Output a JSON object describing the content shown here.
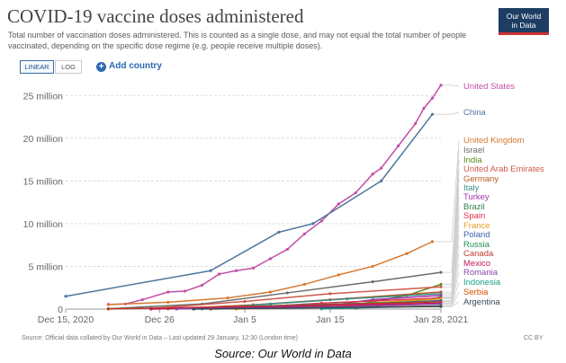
{
  "header": {
    "title": "COVID-19 vaccine doses administered",
    "subtitle": "Total number of vaccination doses administered. This is counted as a single dose, and may not equal the total number of people vaccinated, depending on the specific dose regime (e.g. people receive multiple doses).",
    "logo_line1": "Our World",
    "logo_line2": "in Data"
  },
  "controls": {
    "linear_label": "LINEAR",
    "log_label": "LOG",
    "add_country_label": "Add country",
    "add_icon": "plus-icon",
    "selected_scale": "LINEAR"
  },
  "footer": {
    "source": "Source: Official data collated by Our World in Data – Last updated 29 January, 12:30 (London time)",
    "license": "CC BY"
  },
  "caption": "Source: Our World in Data",
  "chart_data": {
    "type": "line",
    "title": "COVID-19 vaccine doses administered",
    "xlabel": "",
    "ylabel": "",
    "x_ticks": [
      "Dec 15, 2020",
      "Dec 26",
      "Jan 5",
      "Jan 15",
      "Jan 28, 2021"
    ],
    "y_ticks": [
      "0",
      "5 million",
      "10 million",
      "15 million",
      "20 million",
      "25 million"
    ],
    "ylim": [
      0,
      26500000
    ],
    "xlim": [
      "2020-12-15",
      "2021-01-28"
    ],
    "grid": "horizontal dashed",
    "legend": "right, labels at line ends",
    "series": [
      {
        "name": "United States",
        "color": "#c14fa6",
        "points": [
          [
            "2020-12-20",
            550000
          ],
          [
            "2020-12-22",
            600000
          ],
          [
            "2020-12-24",
            1100000
          ],
          [
            "2020-12-27",
            2000000
          ],
          [
            "2020-12-29",
            2100000
          ],
          [
            "2020-12-31",
            2800000
          ],
          [
            "2021-01-02",
            4100000
          ],
          [
            "2021-01-04",
            4500000
          ],
          [
            "2021-01-06",
            4800000
          ],
          [
            "2021-01-08",
            5900000
          ],
          [
            "2021-01-10",
            7000000
          ],
          [
            "2021-01-12",
            8800000
          ],
          [
            "2021-01-14",
            10300000
          ],
          [
            "2021-01-16",
            12300000
          ],
          [
            "2021-01-18",
            13600000
          ],
          [
            "2021-01-20",
            15800000
          ],
          [
            "2021-01-21",
            16500000
          ],
          [
            "2021-01-23",
            19100000
          ],
          [
            "2021-01-25",
            21700000
          ],
          [
            "2021-01-26",
            23500000
          ],
          [
            "2021-01-27",
            24700000
          ],
          [
            "2021-01-28",
            26200000
          ]
        ]
      },
      {
        "name": "China",
        "color": "#4e779e",
        "points": [
          [
            "2020-12-15",
            1500000
          ],
          [
            "2021-01-01",
            4500000
          ],
          [
            "2021-01-09",
            9000000
          ],
          [
            "2021-01-13",
            10000000
          ],
          [
            "2021-01-21",
            15000000
          ],
          [
            "2021-01-27",
            22800000
          ]
        ]
      },
      {
        "name": "United Kingdom",
        "color": "#d6782f",
        "points": [
          [
            "2020-12-20",
            520000
          ],
          [
            "2020-12-27",
            800000
          ],
          [
            "2021-01-03",
            1300000
          ],
          [
            "2021-01-08",
            2000000
          ],
          [
            "2021-01-12",
            2900000
          ],
          [
            "2021-01-16",
            4000000
          ],
          [
            "2021-01-20",
            5000000
          ],
          [
            "2021-01-24",
            6500000
          ],
          [
            "2021-01-27",
            7900000
          ]
        ]
      },
      {
        "name": "Israel",
        "color": "#6d6d6d",
        "points": [
          [
            "2020-12-20",
            50000
          ],
          [
            "2020-12-31",
            600000
          ],
          [
            "2021-01-10",
            1900000
          ],
          [
            "2021-01-20",
            3200000
          ],
          [
            "2021-01-28",
            4300000
          ]
        ]
      },
      {
        "name": "India",
        "color": "#5b8a1f",
        "points": [
          [
            "2021-01-16",
            190000
          ],
          [
            "2021-01-20",
            850000
          ],
          [
            "2021-01-24",
            1600000
          ],
          [
            "2021-01-28",
            2900000
          ]
        ]
      },
      {
        "name": "United Arab Emirates",
        "color": "#cf5a4a",
        "points": [
          [
            "2020-12-25",
            80000
          ],
          [
            "2021-01-05",
            900000
          ],
          [
            "2021-01-15",
            1800000
          ],
          [
            "2021-01-28",
            2600000
          ]
        ]
      },
      {
        "name": "Germany",
        "color": "#b85b20",
        "points": [
          [
            "2020-12-27",
            20000
          ],
          [
            "2021-01-06",
            500000
          ],
          [
            "2021-01-15",
            1100000
          ],
          [
            "2021-01-28",
            2000000
          ]
        ]
      },
      {
        "name": "Italy",
        "color": "#3b8f8a",
        "points": [
          [
            "2020-12-31",
            30000
          ],
          [
            "2021-01-08",
            600000
          ],
          [
            "2021-01-17",
            1200000
          ],
          [
            "2021-01-28",
            1800000
          ]
        ]
      },
      {
        "name": "Turkey",
        "color": "#9c35a8",
        "points": [
          [
            "2021-01-14",
            300000
          ],
          [
            "2021-01-20",
            1100000
          ],
          [
            "2021-01-28",
            1600000
          ]
        ]
      },
      {
        "name": "Brazil",
        "color": "#2f7f4a",
        "points": [
          [
            "2021-01-18",
            100000
          ],
          [
            "2021-01-24",
            800000
          ],
          [
            "2021-01-28",
            1400000
          ]
        ]
      },
      {
        "name": "Spain",
        "color": "#e0314b",
        "points": [
          [
            "2021-01-04",
            100000
          ],
          [
            "2021-01-14",
            700000
          ],
          [
            "2021-01-28",
            1300000
          ]
        ]
      },
      {
        "name": "France",
        "color": "#e0a020",
        "points": [
          [
            "2021-01-04",
            5000
          ],
          [
            "2021-01-14",
            400000
          ],
          [
            "2021-01-28",
            1200000
          ]
        ]
      },
      {
        "name": "Poland",
        "color": "#3d5fa8",
        "points": [
          [
            "2021-01-01",
            20000
          ],
          [
            "2021-01-14",
            400000
          ],
          [
            "2021-01-28",
            1000000
          ]
        ]
      },
      {
        "name": "Russia",
        "color": "#1f8f50",
        "points": [
          [
            "2020-12-25",
            20000
          ],
          [
            "2021-01-12",
            500000
          ],
          [
            "2021-01-28",
            900000
          ]
        ]
      },
      {
        "name": "Canada",
        "color": "#c0392b",
        "points": [
          [
            "2020-12-20",
            10000
          ],
          [
            "2021-01-10",
            400000
          ],
          [
            "2021-01-28",
            850000
          ]
        ]
      },
      {
        "name": "Mexico",
        "color": "#c2185b",
        "points": [
          [
            "2020-12-25",
            5000
          ],
          [
            "2021-01-12",
            350000
          ],
          [
            "2021-01-28",
            700000
          ]
        ]
      },
      {
        "name": "Romania",
        "color": "#8e44ad",
        "points": [
          [
            "2020-12-28",
            10000
          ],
          [
            "2021-01-15",
            250000
          ],
          [
            "2021-01-28",
            600000
          ]
        ]
      },
      {
        "name": "Indonesia",
        "color": "#16a085",
        "points": [
          [
            "2021-01-14",
            20000
          ],
          [
            "2021-01-28",
            400000
          ]
        ]
      },
      {
        "name": "Serbia",
        "color": "#d35400",
        "points": [
          [
            "2021-01-01",
            5000
          ],
          [
            "2021-01-28",
            350000
          ]
        ]
      },
      {
        "name": "Argentina",
        "color": "#34495e",
        "points": [
          [
            "2020-12-30",
            5000
          ],
          [
            "2021-01-28",
            300000
          ]
        ]
      }
    ]
  }
}
